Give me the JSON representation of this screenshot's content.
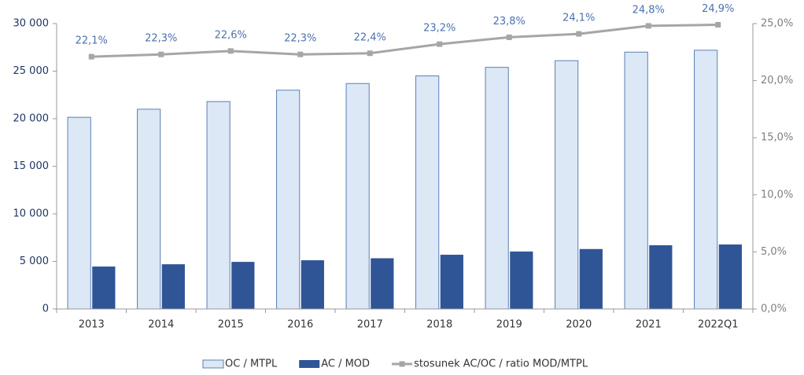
{
  "chart_data": {
    "type": "bar",
    "categories": [
      "2013",
      "2014",
      "2015",
      "2016",
      "2017",
      "2018",
      "2019",
      "2020",
      "2021",
      "2022Q1"
    ],
    "series": [
      {
        "name": "OC / MTPL",
        "color": "#dce8f6",
        "values": [
          20150,
          21000,
          21800,
          23000,
          23700,
          24500,
          25400,
          26100,
          27000,
          27200
        ]
      },
      {
        "name": "AC / MOD",
        "color": "#2f5597",
        "values": [
          4460,
          4700,
          4950,
          5120,
          5330,
          5700,
          6040,
          6300,
          6700,
          6780
        ]
      },
      {
        "name": "stosunek AC/OC / ratio MOD/MTPL",
        "color": "#a6a6a6",
        "type": "line",
        "axis": "y2",
        "values": [
          22.1,
          22.3,
          22.6,
          22.3,
          22.4,
          23.2,
          23.8,
          24.1,
          24.8,
          24.9
        ],
        "value_labels": [
          "22,1%",
          "22,3%",
          "22,6%",
          "22,3%",
          "22,4%",
          "23,2%",
          "23,8%",
          "24,1%",
          "24,8%",
          "24,9%"
        ]
      }
    ],
    "ylim": [
      0,
      30000
    ],
    "yticks": [
      0,
      {
        "value": 5000,
        "label": "5 000"
      },
      {
        "value": 10000,
        "label": "10 000"
      },
      {
        "value": 15000,
        "label": "15 000"
      },
      {
        "value": 20000,
        "label": "20 000"
      },
      {
        "value": 25000,
        "label": "25 000"
      },
      {
        "value": 30000,
        "label": "30 000"
      }
    ],
    "y2lim": [
      0,
      25
    ],
    "y2ticks": [
      {
        "value": 0,
        "label": "0,0%"
      },
      {
        "value": 5,
        "label": "5,0%"
      },
      {
        "value": 10,
        "label": "10,0%"
      },
      {
        "value": 15,
        "label": "15,0%"
      },
      {
        "value": 20,
        "label": "20,0%"
      },
      {
        "value": 25,
        "label": "25,0%"
      }
    ],
    "legend": "bottom"
  }
}
